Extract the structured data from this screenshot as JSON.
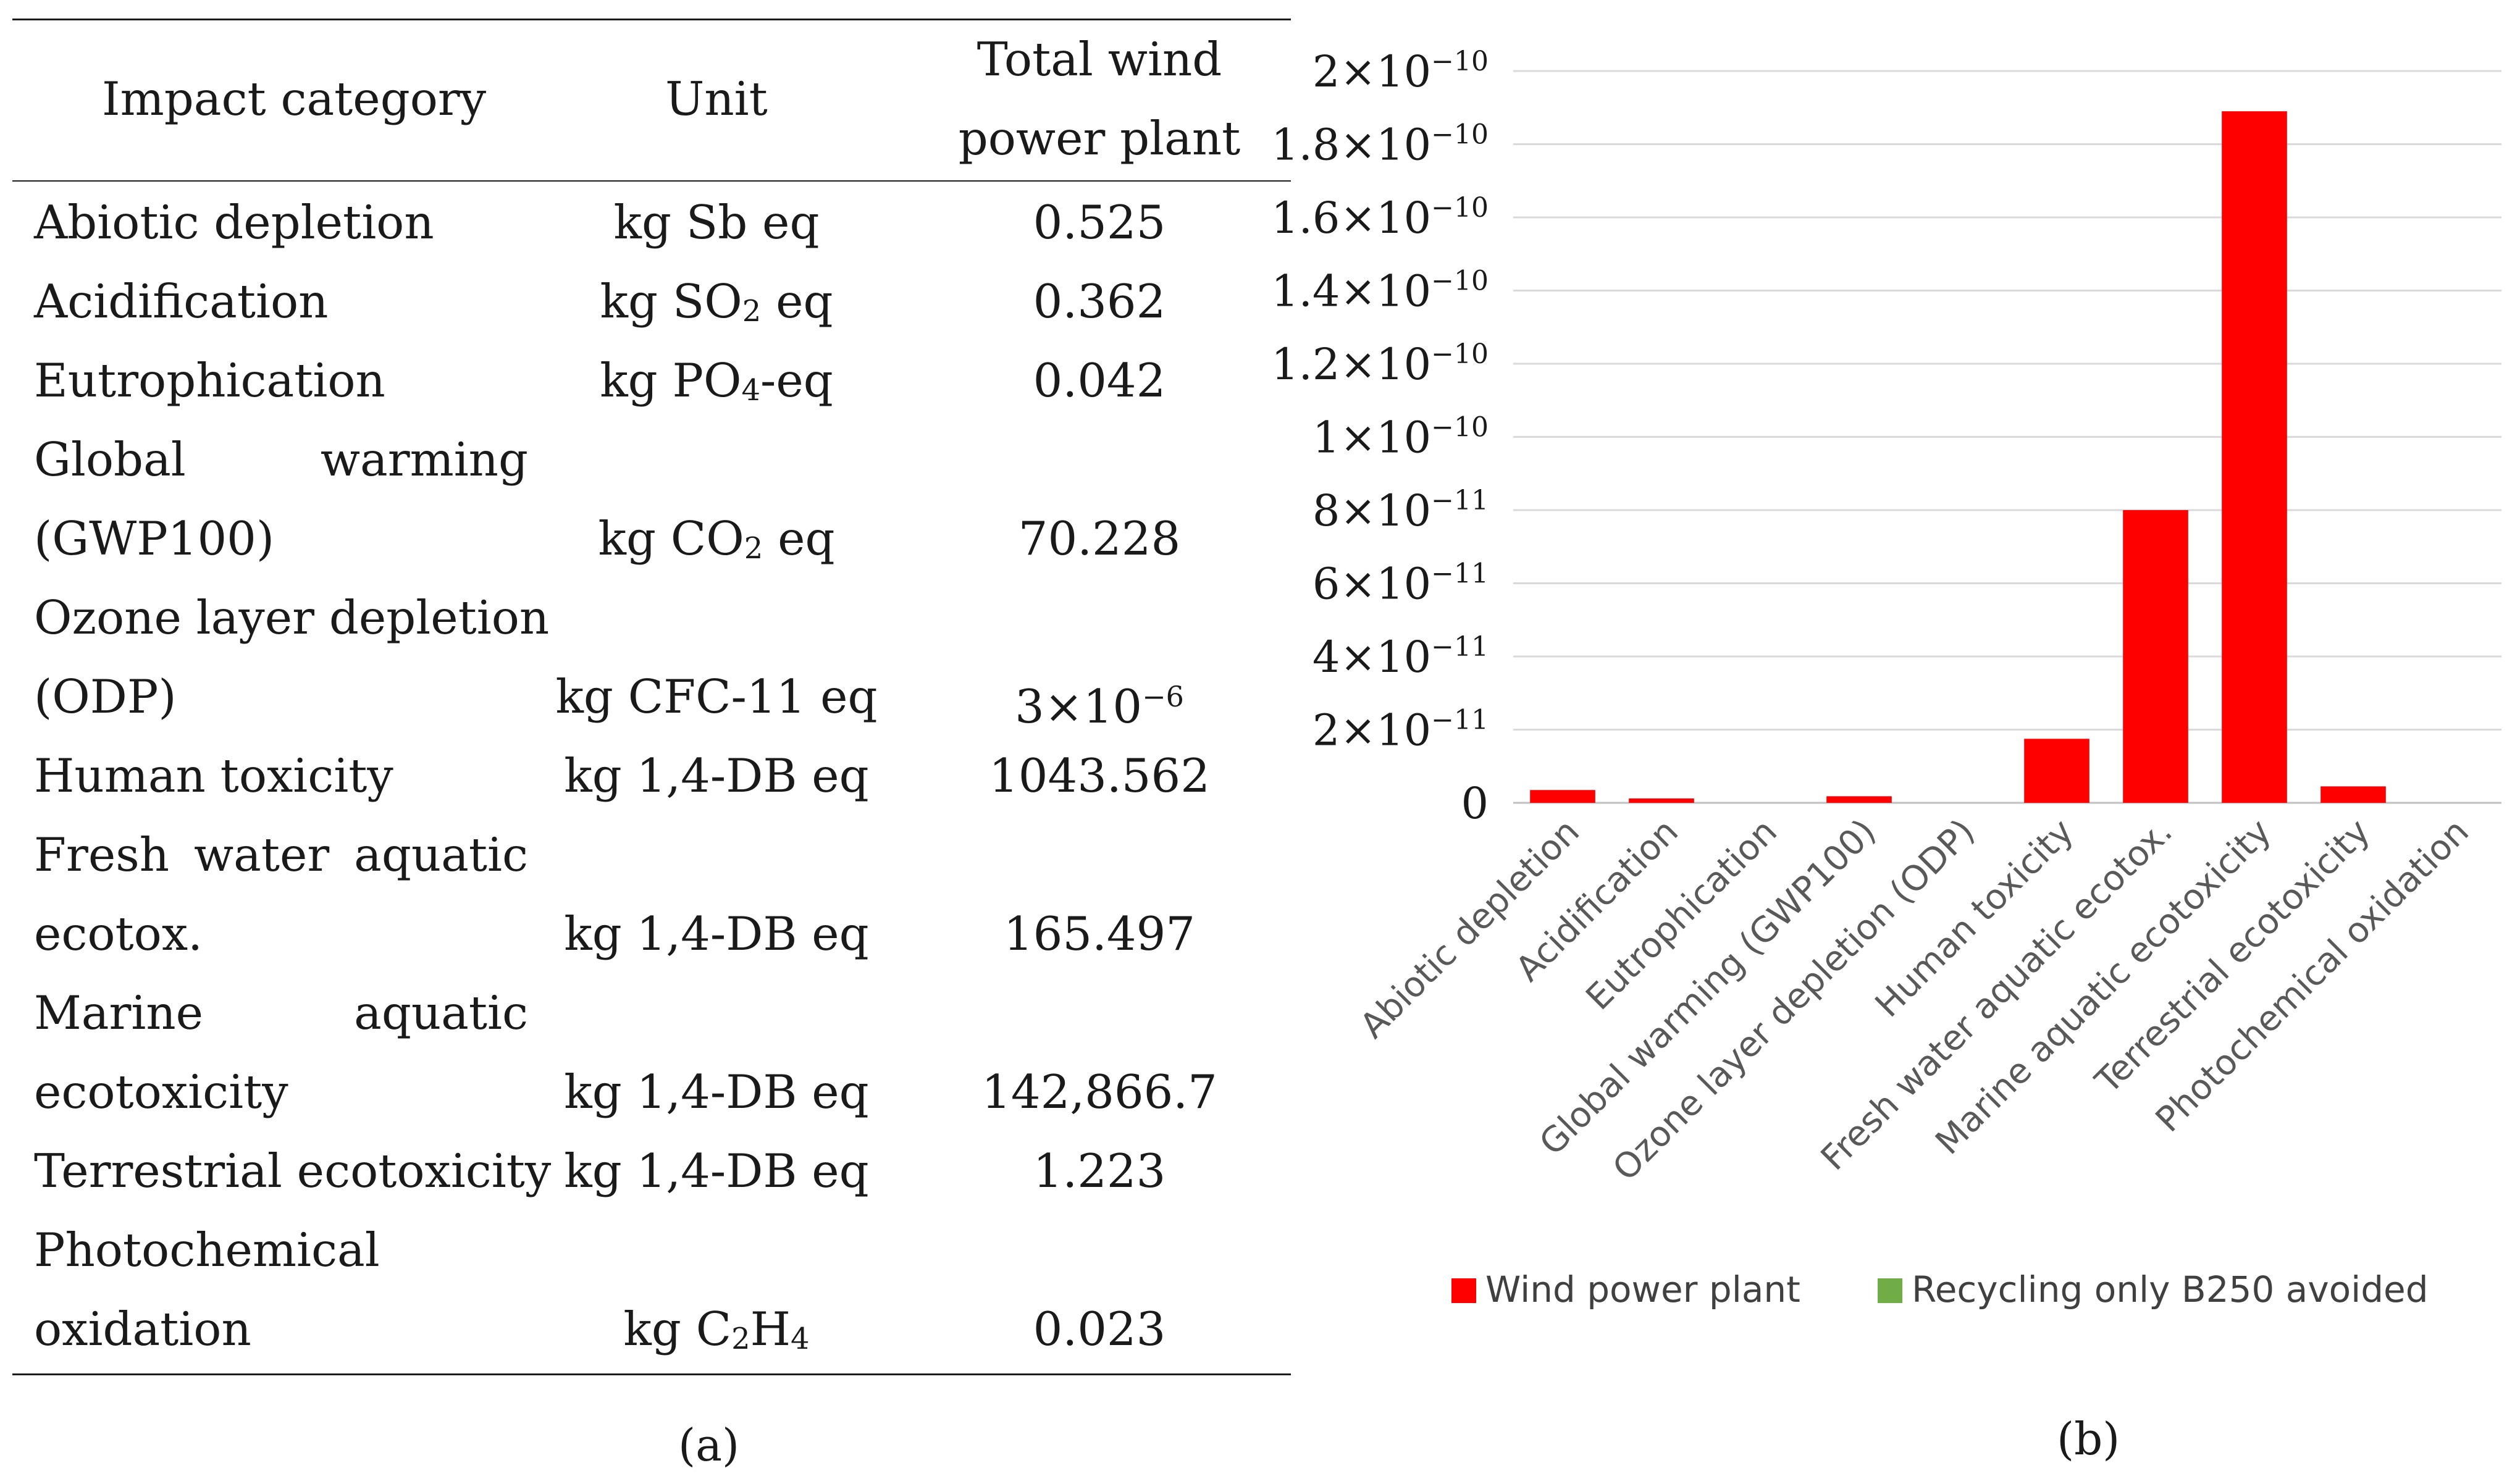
{
  "panel_a": {
    "label": "(a)",
    "headers": {
      "category": "Impact category",
      "unit": "Unit",
      "value_line1": "Total wind",
      "value_line2": "power plant"
    },
    "rows": [
      {
        "cat1": "Abiotic depletion",
        "unit_pre": "kg Sb eq",
        "value": "0.525"
      },
      {
        "cat1": "Acidification",
        "unit_pre": "kg SO",
        "unit_sub": "2",
        "unit_post": " eq",
        "value": "0.362"
      },
      {
        "cat1": "Eutrophication",
        "unit_pre": "kg PO",
        "unit_sub": "4",
        "unit_post": "-eq",
        "value": "0.042"
      },
      {
        "cat1a": "Global",
        "cat1b": "warming",
        "cat2": "(GWP100)",
        "unit_pre": "kg CO",
        "unit_sub": "2",
        "unit_post": " eq",
        "value": "70.228"
      },
      {
        "cat1": "Ozone layer depletion",
        "cat2": "(ODP)",
        "unit_pre": "kg CFC-11 eq",
        "value_base": "3×10",
        "value_exp": "−6"
      },
      {
        "cat1": "Human toxicity",
        "unit_pre": "kg 1,4-DB eq",
        "value": "1043.562"
      },
      {
        "cat1a": "Fresh",
        "cat1b": "water",
        "cat1c": "aquatic",
        "cat2": "ecotox.",
        "unit_pre": "kg 1,4-DB eq",
        "value": "165.497"
      },
      {
        "cat1a": "Marine",
        "cat1b": "aquatic",
        "cat2": "ecotoxicity",
        "unit_pre": "kg 1,4-DB eq",
        "value": "142,866.7"
      },
      {
        "cat1": "Terrestrial ecotoxicity",
        "unit_pre": "kg 1,4-DB eq",
        "value": "1.223"
      },
      {
        "cat1": "Photochemical",
        "cat2": "oxidation",
        "unit_pre": "kg C",
        "unit_sub": "2",
        "unit_mid": "H",
        "unit_sub2": "4",
        "value": "0.023"
      }
    ]
  },
  "panel_b": {
    "label": "(b)",
    "chart_data": {
      "type": "bar",
      "categories": [
        "Abiotic depletion",
        "Acidification",
        "Eutrophication",
        "Global warming (GWP100)",
        "Ozone layer depletion (ODP)",
        "Human toxicity",
        "Fresh water aquatic ecotox.",
        "Marine aquatic ecotoxicity",
        "Terrestrial ecotoxicity",
        "Photochemical oxidation"
      ],
      "series": [
        {
          "name": "Wind power plant",
          "color": "#FF0000",
          "values": [
            3.5e-12,
            1.2e-12,
            0,
            1.8e-12,
            0,
            1.75e-11,
            8e-11,
            1.89e-10,
            4.5e-12,
            0
          ]
        },
        {
          "name": "Recycling only B250 avoided",
          "color": "#70AD47",
          "values": [
            0,
            0,
            0,
            0,
            0,
            0,
            0,
            0,
            0,
            0
          ]
        }
      ],
      "ylim": [
        0,
        2e-10
      ],
      "yticks": [
        {
          "value": 0,
          "label": "0"
        },
        {
          "value": 2e-11,
          "label": "2×10",
          "exp": "−11"
        },
        {
          "value": 4e-11,
          "label": "4×10",
          "exp": "−11"
        },
        {
          "value": 6e-11,
          "label": "6×10",
          "exp": "−11"
        },
        {
          "value": 8e-11,
          "label": "8×10",
          "exp": "−11"
        },
        {
          "value": 1e-10,
          "label": "1×10",
          "exp": "−10"
        },
        {
          "value": 1.2e-10,
          "label": "1.2×10",
          "exp": "−10"
        },
        {
          "value": 1.4e-10,
          "label": "1.4×10",
          "exp": "−10"
        },
        {
          "value": 1.6e-10,
          "label": "1.6×10",
          "exp": "−10"
        },
        {
          "value": 1.8e-10,
          "label": "1.8×10",
          "exp": "−10"
        },
        {
          "value": 2e-10,
          "label": "2×10",
          "exp": "−10"
        }
      ],
      "grid": true,
      "legend_position": "bottom",
      "title": "",
      "xlabel": "",
      "ylabel": ""
    }
  }
}
